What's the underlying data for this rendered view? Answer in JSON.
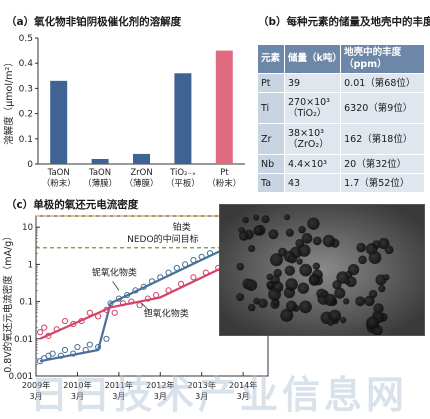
{
  "panel_a": {
    "title": "（a）氧化物非铂阴极催化剂的溶解度",
    "ylabel": "溶解度（μmol/m²）"
  },
  "panel_b": {
    "title": "（b）每种元素的储量及地壳中的丰度",
    "headers": [
      "元素",
      "储量（k吨）",
      "地壳中的丰度（ppm）"
    ],
    "rows": [
      {
        "el": "Pt",
        "reserve": "39",
        "abundance": "0.01（第68位）"
      },
      {
        "el": "Ti",
        "reserve": "270×10³",
        "reserve_note": "（TiO₂）",
        "abundance": "6320（第9位）"
      },
      {
        "el": "Zr",
        "reserve": "38×10³",
        "reserve_note": "（ZrO₂）",
        "abundance": "162（第18位）"
      },
      {
        "el": "Nb",
        "reserve": "4.4×10³",
        "abundance": "20（第32位）"
      },
      {
        "el": "Ta",
        "reserve": "43",
        "abundance": "1.7（第52位）"
      }
    ]
  },
  "panel_c": {
    "title": "（c）单极的氧还元电流密度",
    "ylabel": "0.8V的氧还元电流密度（mA/g）",
    "line_labels": {
      "pt": "铂类",
      "nedo": "NEDO的中间目标",
      "nb_ta": "铌氧化物类",
      "ta": "钽氧化物类"
    }
  },
  "watermark": "日日技术产业信息网",
  "chart_data": [
    {
      "type": "bar",
      "title": "（a）氧化物非铂阴极催化剂的溶解度",
      "ylabel": "溶解度（μmol/m²）",
      "ylim": [
        0,
        0.5
      ],
      "yticks": [
        "0",
        "0.1",
        "0.2",
        "0.3",
        "0.4",
        "0.5"
      ],
      "categories": [
        {
          "name": "TaON",
          "note": "（粉末）"
        },
        {
          "name": "TaON",
          "note": "（薄膜）"
        },
        {
          "name": "ZrON",
          "note": "（薄膜）"
        },
        {
          "name": "TiO₂₋ₓ",
          "note": "（平板）"
        },
        {
          "name": "Pt",
          "note": "（粉末）"
        }
      ],
      "values": [
        0.33,
        0.02,
        0.04,
        0.36,
        0.45
      ],
      "colors": [
        "#3f6494",
        "#3f6494",
        "#3f6494",
        "#3f6494",
        "#e06a80"
      ],
      "grid": false
    },
    {
      "type": "line",
      "title": "（c）单极的氧还元电流密度",
      "ylabel": "0.8V的氧还元电流密度（mA/g）",
      "yscale": "log",
      "ylim": [
        0.001,
        20
      ],
      "yticks": [
        "0.001",
        "0.01",
        "0.1",
        "1",
        "10"
      ],
      "xlim": [
        2009.0,
        2014.6
      ],
      "xticks": [
        {
          "value": 2009.0,
          "label": "2009年",
          "sub": "3月"
        },
        {
          "value": 2010.0,
          "label": "2010年",
          "sub": "3月"
        },
        {
          "value": 2011.0,
          "label": "2011年",
          "sub": "3月"
        },
        {
          "value": 2012.0,
          "label": "2012年",
          "sub": "3月"
        },
        {
          "value": 2013.0,
          "label": "2013年",
          "sub": "3月"
        },
        {
          "value": 2014.0,
          "label": "2014年",
          "sub": "3月"
        }
      ],
      "reference_lines": [
        {
          "name": "铂类",
          "y": 20,
          "color": "#e0a030",
          "style": "dashed"
        },
        {
          "name": "NEDO的中间目标",
          "y": 2.8,
          "color": "#6a9a3a",
          "style": "dashed"
        }
      ],
      "series": [
        {
          "name": "铌氧化物类",
          "color": "#4a6f9a",
          "trend": [
            [
              2009.1,
              0.0025
            ],
            [
              2010.5,
              0.005
            ],
            [
              2010.8,
              0.09
            ],
            [
              2014.0,
              4.5
            ]
          ],
          "points": [
            [
              2009.1,
              0.0025
            ],
            [
              2009.2,
              0.003
            ],
            [
              2009.3,
              0.0035
            ],
            [
              2009.4,
              0.004
            ],
            [
              2009.6,
              0.0035
            ],
            [
              2009.7,
              0.005
            ],
            [
              2009.9,
              0.004
            ],
            [
              2010.0,
              0.006
            ],
            [
              2010.2,
              0.005
            ],
            [
              2010.3,
              0.007
            ],
            [
              2010.5,
              0.006
            ],
            [
              2010.7,
              0.01
            ],
            [
              2010.8,
              0.09
            ],
            [
              2011.0,
              0.12
            ],
            [
              2011.2,
              0.15
            ],
            [
              2011.4,
              0.2
            ],
            [
              2011.6,
              0.25
            ],
            [
              2011.8,
              0.35
            ],
            [
              2012.0,
              0.45
            ],
            [
              2012.2,
              0.6
            ],
            [
              2012.4,
              0.8
            ],
            [
              2012.6,
              1.0
            ],
            [
              2012.8,
              1.3
            ],
            [
              2013.0,
              1.6
            ],
            [
              2013.2,
              2.0
            ],
            [
              2013.5,
              3.0
            ],
            [
              2013.7,
              3.5
            ],
            [
              2014.0,
              4.5
            ]
          ]
        },
        {
          "name": "钽氧化物类",
          "color": "#d2446a",
          "trend": [
            [
              2009.1,
              0.01
            ],
            [
              2010.8,
              0.07
            ],
            [
              2012.0,
              0.13
            ],
            [
              2014.0,
              1.5
            ]
          ],
          "points": [
            [
              2009.1,
              0.015
            ],
            [
              2009.2,
              0.02
            ],
            [
              2009.3,
              0.012
            ],
            [
              2009.5,
              0.018
            ],
            [
              2009.7,
              0.03
            ],
            [
              2009.9,
              0.025
            ],
            [
              2010.1,
              0.03
            ],
            [
              2010.3,
              0.05
            ],
            [
              2010.5,
              0.04
            ],
            [
              2010.7,
              0.06
            ],
            [
              2010.9,
              0.05
            ],
            [
              2011.1,
              0.09
            ],
            [
              2011.3,
              0.1
            ],
            [
              2011.5,
              0.08
            ],
            [
              2011.7,
              0.12
            ],
            [
              2011.9,
              0.15
            ],
            [
              2012.2,
              0.2
            ],
            [
              2012.5,
              0.3
            ],
            [
              2012.8,
              0.45
            ],
            [
              2013.1,
              0.6
            ],
            [
              2013.4,
              0.8
            ],
            [
              2013.7,
              1.1
            ],
            [
              2014.0,
              1.4
            ]
          ]
        }
      ]
    }
  ]
}
